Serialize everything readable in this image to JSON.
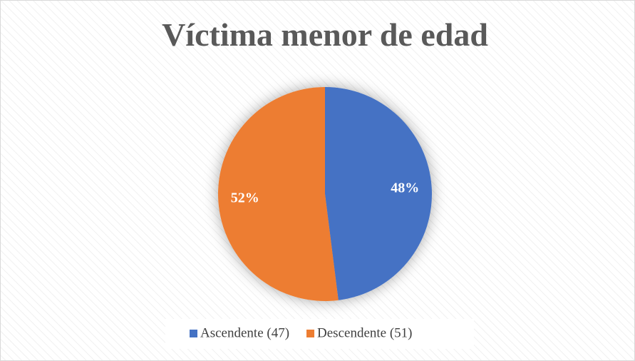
{
  "chart_data": {
    "type": "pie",
    "title": "Víctima menor de edad",
    "categories": [
      "Ascendente (47)",
      "Descendente (51)"
    ],
    "values": [
      48,
      52
    ],
    "value_labels": [
      "48%",
      "52%"
    ],
    "colors": [
      "#4472c4",
      "#ed7d31"
    ],
    "legend": "bottom"
  }
}
